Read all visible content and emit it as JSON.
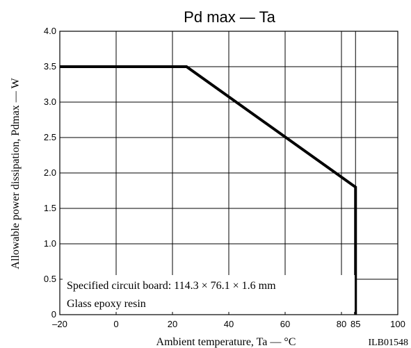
{
  "chart_data": {
    "type": "line",
    "title": "Pd max — Ta",
    "xlabel": "Ambient temperature, Ta — °C",
    "ylabel": "Allowable power dissipation, Pdmax — W",
    "xlim": [
      -20,
      100
    ],
    "ylim": [
      0,
      4.0
    ],
    "x_ticks": [
      -20,
      0,
      20,
      40,
      60,
      80,
      85,
      100
    ],
    "x_tick_labels": [
      "–20",
      "0",
      "20",
      "40",
      "60",
      "80",
      "85",
      "100"
    ],
    "y_ticks": [
      0,
      0.5,
      1.0,
      1.5,
      2.0,
      2.5,
      3.0,
      3.5,
      4.0
    ],
    "y_tick_labels": [
      "0",
      "0.5",
      "1.0",
      "1.5",
      "2.0",
      "2.5",
      "3.0",
      "3.5",
      "4.0"
    ],
    "grid": true,
    "series": [
      {
        "x": [
          -20,
          25,
          85,
          85
        ],
        "y": [
          3.5,
          3.5,
          1.8,
          0
        ]
      }
    ],
    "annotations": [
      "Specified circuit board: 114.3 × 76.1 × 1.6 mm",
      "Glass epoxy resin"
    ],
    "figure_id": "ILB01548"
  }
}
